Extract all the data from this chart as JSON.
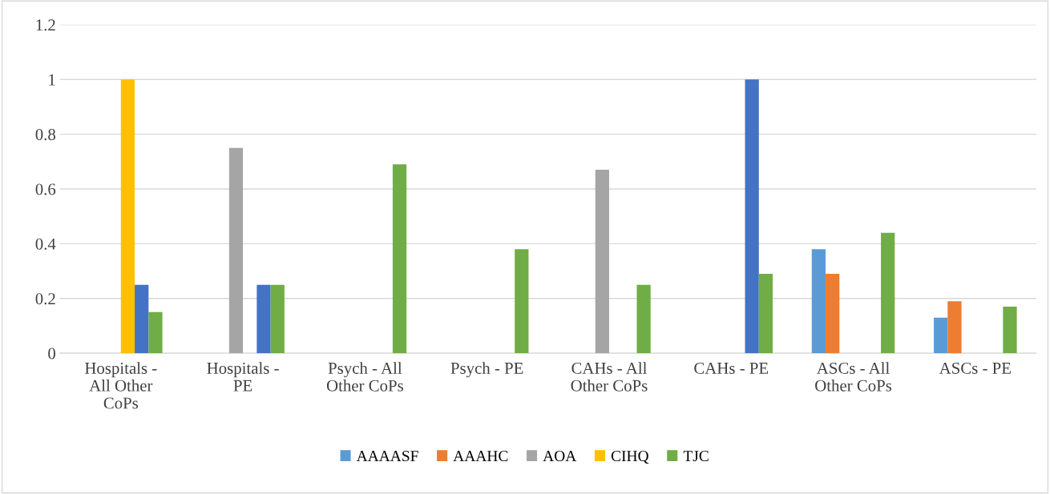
{
  "chart_data": {
    "type": "bar",
    "categories": [
      "Hospitals -\nAll Other\nCoPs",
      "Hospitals -\nPE",
      "Psych - All\nOther CoPs",
      "Psych - PE",
      "CAHs - All\nOther CoPs",
      "CAHs - PE",
      "ASCs - All\nOther CoPs",
      "ASCs - PE"
    ],
    "series": [
      {
        "name": "AAAASF",
        "color": "#5b9bd5",
        "values": [
          null,
          null,
          null,
          null,
          null,
          null,
          0.38,
          0.13
        ]
      },
      {
        "name": "AAAHC",
        "color": "#ed7d31",
        "values": [
          null,
          null,
          null,
          null,
          null,
          null,
          0.29,
          0.19
        ]
      },
      {
        "name": "AOA",
        "color": "#a5a5a5",
        "values": [
          null,
          0.75,
          null,
          null,
          0.67,
          null,
          null,
          null
        ]
      },
      {
        "name": "CIHQ",
        "color": "#ffc000",
        "values": [
          1,
          null,
          null,
          null,
          null,
          null,
          null,
          null
        ]
      },
      {
        "color": "#4472c4",
        "values": [
          0.25,
          0.25,
          null,
          null,
          null,
          1,
          null,
          null
        ]
      },
      {
        "name": "TJC",
        "color": "#70ad47",
        "values": [
          0.15,
          0.25,
          0.69,
          0.38,
          0.25,
          0.29,
          0.44,
          0.17
        ]
      }
    ],
    "ylim": [
      0,
      1.2
    ],
    "yticks": [
      0,
      0.2,
      0.4,
      0.6,
      0.8,
      1,
      1.2
    ],
    "grid": "y",
    "legend": "bottom"
  }
}
